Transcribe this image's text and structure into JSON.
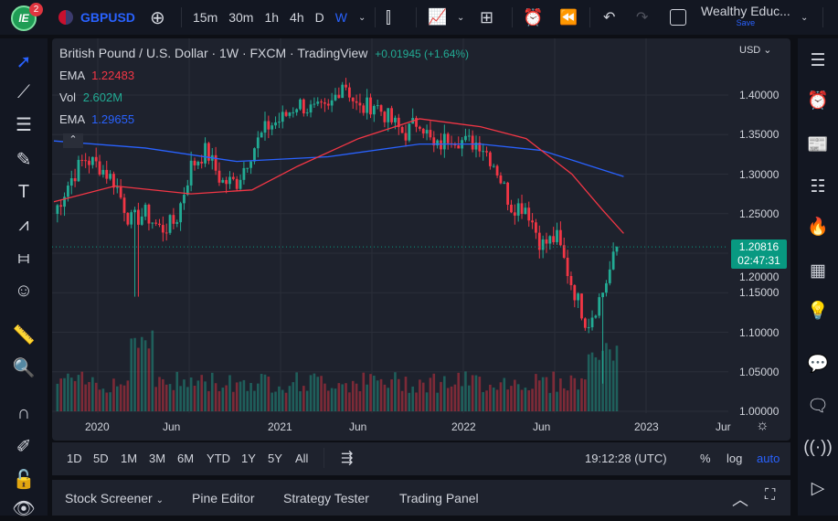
{
  "topbar": {
    "badge": "2",
    "logo_text": "IE",
    "symbol": "GBPUSD",
    "intervals": [
      "15m",
      "30m",
      "1h",
      "4h",
      "D",
      "W"
    ],
    "active_interval": "W",
    "layout_name": "Wealthy Educ...",
    "save_label": "Save"
  },
  "legend": {
    "title": "British Pound / U.S. Dollar · 1W · FXCM · TradingView",
    "change": "+0.01945 (+1.64%)",
    "indicators": [
      {
        "name": "EMA",
        "value": "1.22483",
        "color": "#f23645"
      },
      {
        "name": "Vol",
        "value": "2.602M",
        "color": "#22ab94"
      },
      {
        "name": "EMA",
        "value": "1.29655",
        "color": "#2962ff"
      }
    ]
  },
  "price_axis": {
    "currency": "USD",
    "ticks": [
      "1.40000",
      "1.35000",
      "1.30000",
      "1.25000",
      "1.20000",
      "1.15000",
      "1.10000",
      "1.05000",
      "1.00000"
    ],
    "last_price": "1.20816",
    "countdown": "02:47:31"
  },
  "time_axis": [
    "2020",
    "Jun",
    "2021",
    "Jun",
    "2022",
    "Jun",
    "2023",
    "Jur"
  ],
  "bottom_toolbar": {
    "ranges": [
      "1D",
      "5D",
      "1M",
      "3M",
      "6M",
      "YTD",
      "1Y",
      "5Y",
      "All"
    ],
    "clock": "19:12:28 (UTC)",
    "percent": "%",
    "log": "log",
    "auto": "auto"
  },
  "bottom_panel": {
    "tabs": [
      "Stock Screener",
      "Pine Editor",
      "Strategy Tester",
      "Trading Panel"
    ]
  },
  "chart_data": {
    "type": "candlestick",
    "start_month": "Oct 2019",
    "interval": "1W",
    "monthly_closes": [
      1.25,
      1.29,
      1.32,
      1.31,
      1.29,
      1.24,
      1.25,
      1.23,
      1.24,
      1.31,
      1.33,
      1.29,
      1.29,
      1.33,
      1.36,
      1.37,
      1.39,
      1.38,
      1.38,
      1.42,
      1.38,
      1.39,
      1.37,
      1.35,
      1.37,
      1.33,
      1.35,
      1.34,
      1.34,
      1.31,
      1.26,
      1.26,
      1.21,
      1.22,
      1.16,
      1.11,
      1.15,
      1.208
    ],
    "ema_red": [
      [
        0,
        1.265
      ],
      [
        4,
        1.285
      ],
      [
        9,
        1.275
      ],
      [
        13,
        1.28
      ],
      [
        16,
        1.31
      ],
      [
        20,
        1.345
      ],
      [
        24,
        1.37
      ],
      [
        28,
        1.36
      ],
      [
        31,
        1.345
      ],
      [
        34,
        1.3
      ],
      [
        36,
        1.255
      ],
      [
        37.4,
        1.225
      ]
    ],
    "ema_blue": [
      [
        0,
        1.342
      ],
      [
        6,
        1.333
      ],
      [
        12,
        1.316
      ],
      [
        18,
        1.322
      ],
      [
        24,
        1.338
      ],
      [
        28,
        1.338
      ],
      [
        32,
        1.33
      ],
      [
        37.4,
        1.297
      ]
    ],
    "ylim": [
      1.0,
      1.4
    ],
    "colors": {
      "up": "#22ab94",
      "down": "#f23645"
    }
  }
}
